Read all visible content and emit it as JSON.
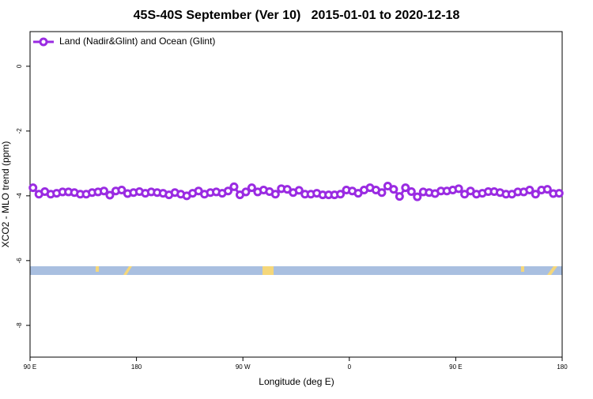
{
  "chart_data": {
    "type": "line",
    "title": "45S-40S September (Ver 10)   2015-01-01 to 2020-12-18",
    "x_label": "Longitude (deg E)",
    "y_label": "XCO2 - MLO trend (ppm)",
    "legend": "top-left",
    "x": [
      92.5,
      97.5,
      102.5,
      107.5,
      112.5,
      117.5,
      122.5,
      127.5,
      132.5,
      137.5,
      142.5,
      147.5,
      152.5,
      157.5,
      162.5,
      167.5,
      172.5,
      177.5,
      182.5,
      187.5,
      192.5,
      197.5,
      202.5,
      207.5,
      212.5,
      217.5,
      222.5,
      227.5,
      232.5,
      237.5,
      242.5,
      247.5,
      252.5,
      257.5,
      262.5,
      267.5,
      272.5,
      277.5,
      282.5,
      287.5,
      292.5,
      297.5,
      302.5,
      307.5,
      312.5,
      317.5,
      322.5,
      327.5,
      332.5,
      337.5,
      342.5,
      347.5,
      352.5,
      357.5,
      362.5,
      367.5,
      372.5,
      377.5,
      382.5,
      387.5,
      392.5,
      397.5,
      402.5,
      407.5,
      412.5,
      417.5,
      422.5,
      427.5,
      432.5,
      437.5,
      442.5,
      447.5,
      452.5,
      457.5,
      462.5,
      467.5,
      472.5,
      477.5,
      482.5,
      487.5,
      492.5,
      497.5,
      502.5,
      507.5,
      512.5,
      517.5,
      522.5,
      527.5,
      532.5,
      537.5
    ],
    "series": [
      {
        "name": "Land (Nadir&Glint) and Ocean (Glint)",
        "color": "#9a2be2",
        "values": [
          -3.75,
          -3.95,
          -3.87,
          -3.95,
          -3.92,
          -3.88,
          -3.88,
          -3.9,
          -3.95,
          -3.95,
          -3.9,
          -3.88,
          -3.85,
          -3.98,
          -3.85,
          -3.82,
          -3.93,
          -3.9,
          -3.87,
          -3.92,
          -3.88,
          -3.9,
          -3.92,
          -3.97,
          -3.9,
          -3.95,
          -4.0,
          -3.92,
          -3.85,
          -3.95,
          -3.9,
          -3.88,
          -3.92,
          -3.85,
          -3.72,
          -3.97,
          -3.88,
          -3.75,
          -3.88,
          -3.82,
          -3.87,
          -3.95,
          -3.78,
          -3.8,
          -3.9,
          -3.83,
          -3.95,
          -3.95,
          -3.92,
          -3.97,
          -3.97,
          -3.97,
          -3.95,
          -3.82,
          -3.85,
          -3.92,
          -3.82,
          -3.75,
          -3.82,
          -3.9,
          -3.7,
          -3.8,
          -4.02,
          -3.75,
          -3.87,
          -4.03,
          -3.88,
          -3.9,
          -3.93,
          -3.85,
          -3.85,
          -3.82,
          -3.78,
          -3.95,
          -3.85,
          -3.95,
          -3.92,
          -3.87,
          -3.87,
          -3.9,
          -3.95,
          -3.95,
          -3.88,
          -3.88,
          -3.82,
          -3.95,
          -3.82,
          -3.8,
          -3.93,
          -3.92
        ]
      }
    ],
    "xlim": [
      90,
      540
    ],
    "xticks": [
      {
        "value": 90,
        "label": "90 E"
      },
      {
        "value": 180,
        "label": "180"
      },
      {
        "value": 270,
        "label": "90 W"
      },
      {
        "value": 360,
        "label": "0"
      },
      {
        "value": 450,
        "label": "90 E"
      },
      {
        "value": 540,
        "label": "180"
      }
    ],
    "ylim": [
      -8.98,
      1.07
    ],
    "yticks": [
      0,
      -2,
      -4,
      -6,
      -8
    ]
  }
}
